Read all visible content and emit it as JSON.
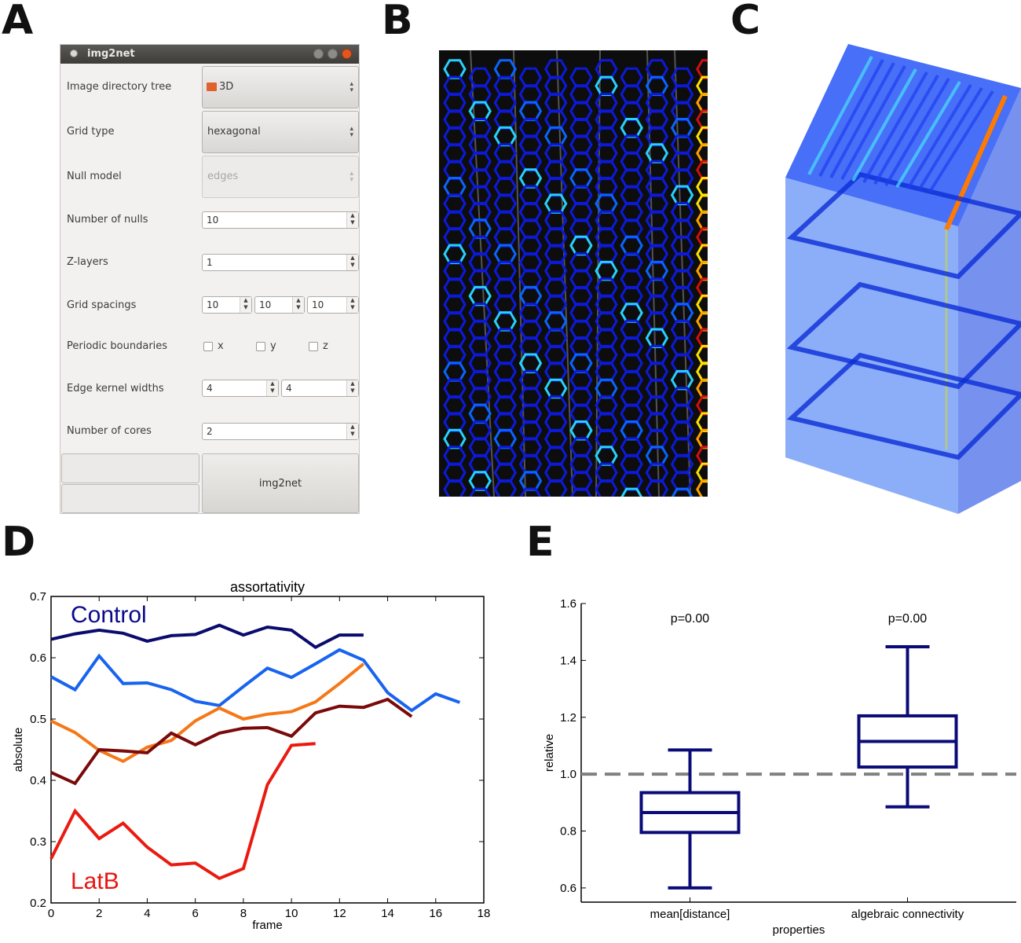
{
  "panel_letters": [
    "A",
    "B",
    "C",
    "D",
    "E"
  ],
  "gui": {
    "window_title": "img2net",
    "rows": [
      {
        "label": "Image directory tree",
        "widget": "combo",
        "value": "3D"
      },
      {
        "label": "Grid type",
        "widget": "combo",
        "value": "hexagonal"
      },
      {
        "label": "Null model",
        "widget": "combo-disabled",
        "value": "edges"
      },
      {
        "label": "Number of nulls",
        "widget": "spin",
        "value": "10"
      },
      {
        "label": "Z-layers",
        "widget": "spin",
        "value": "1"
      },
      {
        "label": "Grid spacings",
        "widget": "spin3",
        "values": [
          "10",
          "10",
          "10"
        ]
      },
      {
        "label": "Periodic boundaries",
        "widget": "checks",
        "options": [
          "x",
          "y",
          "z"
        ]
      },
      {
        "label": "Edge kernel widths",
        "widget": "spin2",
        "values": [
          "4",
          "4"
        ]
      },
      {
        "label": "Number of cores",
        "widget": "spin",
        "value": "2"
      }
    ],
    "run_button": "img2net",
    "icons": [
      "folder-icon",
      "close-icon",
      "minimize-icon",
      "maximize-icon"
    ]
  },
  "panel_b": {
    "description_icon": "hexagonal-grid-overlay-image"
  },
  "panel_c": {
    "description_icon": "3d-hexagonal-grid-render"
  },
  "chart_data": [
    {
      "type": "line",
      "title": "assortativity",
      "xlabel": "frame",
      "ylabel": "absolute",
      "xlim": [
        0,
        18
      ],
      "ylim": [
        0.2,
        0.7
      ],
      "xticks": [
        0,
        2,
        4,
        6,
        8,
        10,
        12,
        14,
        16,
        18
      ],
      "yticks": [
        0.2,
        0.3,
        0.4,
        0.5,
        0.6,
        0.7
      ],
      "annotations": [
        {
          "text": "Control",
          "color": "#0a0a8c"
        },
        {
          "text": "LatB",
          "color": "#e8140f"
        }
      ],
      "series": [
        {
          "color": "#0b0b6e",
          "x": [
            0,
            1,
            2,
            3,
            4,
            5,
            6,
            7,
            8,
            9,
            10,
            11,
            12,
            13
          ],
          "y": [
            0.63,
            0.639,
            0.645,
            0.64,
            0.627,
            0.636,
            0.638,
            0.653,
            0.637,
            0.65,
            0.645,
            0.617,
            0.637,
            0.637
          ]
        },
        {
          "color": "#1864f0",
          "x": [
            0,
            1,
            2,
            3,
            4,
            5,
            6,
            7,
            8,
            9,
            10,
            11,
            12,
            13,
            14,
            15,
            16,
            17
          ],
          "y": [
            0.569,
            0.548,
            0.603,
            0.558,
            0.559,
            0.548,
            0.529,
            0.522,
            0.553,
            0.583,
            0.568,
            0.59,
            0.613,
            0.596,
            0.543,
            0.514,
            0.541,
            0.527
          ]
        },
        {
          "color": "#f57818",
          "x": [
            0,
            1,
            2,
            3,
            4,
            5,
            6,
            7,
            8,
            9,
            10,
            11,
            12,
            13
          ],
          "y": [
            0.497,
            0.478,
            0.449,
            0.431,
            0.454,
            0.465,
            0.497,
            0.518,
            0.5,
            0.508,
            0.512,
            0.528,
            0.558,
            0.59
          ]
        },
        {
          "color": "#7a0a0a",
          "x": [
            0,
            1,
            2,
            3,
            4,
            5,
            6,
            7,
            8,
            9,
            10,
            11,
            12,
            13,
            14,
            15
          ],
          "y": [
            0.413,
            0.395,
            0.45,
            0.448,
            0.445,
            0.477,
            0.458,
            0.477,
            0.485,
            0.486,
            0.472,
            0.51,
            0.521,
            0.519,
            0.532,
            0.504
          ]
        },
        {
          "color": "#ea1a10",
          "x": [
            0,
            1,
            2,
            3,
            4,
            5,
            6,
            7,
            8,
            9,
            10,
            11
          ],
          "y": [
            0.272,
            0.35,
            0.305,
            0.33,
            0.291,
            0.262,
            0.265,
            0.24,
            0.256,
            0.393,
            0.457,
            0.46
          ]
        }
      ]
    },
    {
      "type": "box",
      "xlabel": "properties",
      "ylabel": "relative",
      "ylim": [
        0.55,
        1.6
      ],
      "yticks": [
        0.6,
        0.8,
        1.0,
        1.2,
        1.4,
        1.6
      ],
      "reference_line": 1.0,
      "categories": [
        "mean[distance]",
        "algebraic connectivity"
      ],
      "boxes": [
        {
          "label": "mean[distance]",
          "whisker_low": 0.6,
          "q1": 0.795,
          "median": 0.865,
          "q3": 0.935,
          "whisker_high": 1.085,
          "annotation": "p=0.00"
        },
        {
          "label": "algebraic connectivity",
          "whisker_low": 0.885,
          "q1": 1.025,
          "median": 1.115,
          "q3": 1.205,
          "whisker_high": 1.448,
          "annotation": "p=0.00"
        }
      ],
      "color": "#0a0a78"
    }
  ]
}
